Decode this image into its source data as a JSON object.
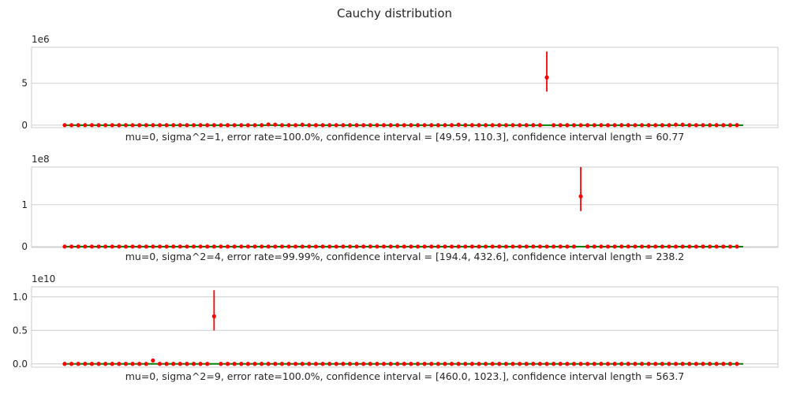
{
  "figure": {
    "title": "Cauchy distribution"
  },
  "colors": {
    "points": "#ff0000",
    "errorbars": "#ff0000",
    "true_line": "#008000",
    "grid": "#cccccc",
    "frame": "#cccccc"
  },
  "chart_data": [
    {
      "type": "scatter",
      "xlabel": "mu=0, sigma^2=1, error rate=100.0%, confidence interval = [49.59, 110.3], confidence interval length = 60.77",
      "offset_text": "1e6",
      "ylim": [
        -0.3,
        9.3
      ],
      "yticks": [
        0,
        5
      ],
      "yticklabels": [
        "0",
        "5"
      ],
      "n_points": 100,
      "baseline": 0,
      "bumps": [
        {
          "index": 30,
          "value": 0.08
        },
        {
          "index": 31,
          "value": 0.06
        },
        {
          "index": 35,
          "value": 0.05
        },
        {
          "index": 58,
          "value": 0.05
        },
        {
          "index": 90,
          "value": 0.06
        },
        {
          "index": 91,
          "value": 0.05
        }
      ],
      "outlier": {
        "index": 71,
        "value": 5.7,
        "err_low": 4.0,
        "err_high": 8.8
      }
    },
    {
      "type": "scatter",
      "xlabel": "mu=0, sigma^2=4, error rate=99.99%, confidence interval = [194.4, 432.6], confidence interval length = 238.2",
      "offset_text": "1e8",
      "ylim": [
        -0.02,
        1.9
      ],
      "yticks": [
        0,
        1
      ],
      "yticklabels": [
        "0",
        "1"
      ],
      "n_points": 100,
      "baseline": 0,
      "bumps": [],
      "outlier": {
        "index": 76,
        "value": 1.2,
        "err_low": 0.85,
        "err_high": 1.9
      }
    },
    {
      "type": "scatter",
      "xlabel": "mu=0, sigma^2=9, error rate=100.0%, confidence interval = [460.0, 1023.], confidence interval length = 563.7",
      "offset_text": "1e10",
      "ylim": [
        -0.05,
        1.15
      ],
      "yticks": [
        0.0,
        0.5,
        1.0
      ],
      "yticklabels": [
        "0.0",
        "0.5",
        "1.0"
      ],
      "n_points": 100,
      "baseline": 0,
      "bumps": [
        {
          "index": 13,
          "value": 0.05
        }
      ],
      "outlier": {
        "index": 22,
        "value": 0.71,
        "err_low": 0.5,
        "err_high": 1.1
      }
    }
  ]
}
